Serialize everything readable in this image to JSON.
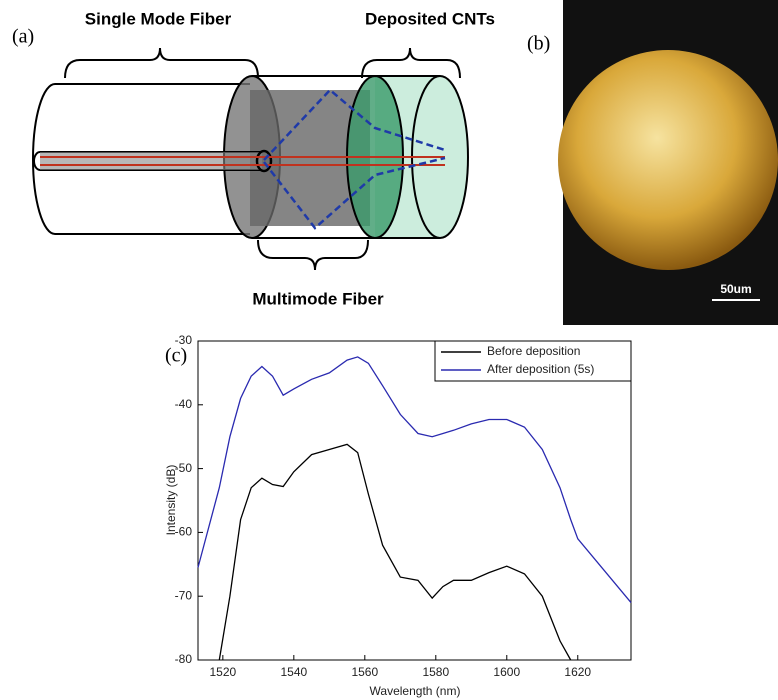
{
  "panel_labels": [
    "(a)",
    "(b)",
    "(c)"
  ],
  "diagram": {
    "labels": [
      "Single Mode Fiber",
      "Deposited CNTs",
      "Multimode Fiber"
    ]
  },
  "micrograph": {
    "scale_bar": "50um"
  },
  "chart_data": {
    "type": "line",
    "x_label": "Wavelength (nm)",
    "y_label": "Intensity (dB)",
    "x": [
      1513,
      1519,
      1522,
      1525,
      1528,
      1531,
      1534,
      1537,
      1540,
      1545,
      1550,
      1555,
      1558,
      1561,
      1565,
      1570,
      1575,
      1579,
      1582,
      1585,
      1590,
      1595,
      1600,
      1605,
      1610,
      1615,
      1618,
      1620,
      1635
    ],
    "series": [
      {
        "name": "Before deposition",
        "color": "#000000",
        "values": [
          null,
          -80,
          -70,
          -58,
          -53,
          -51.5,
          -52.5,
          -52.8,
          -50.5,
          -47.8,
          -47,
          -46.2,
          -47.5,
          -54,
          -62,
          -67,
          -67.5,
          -70.3,
          -68.5,
          -67.5,
          -67.5,
          -66.3,
          -65.3,
          -66.5,
          -70,
          -77,
          -80,
          null,
          null
        ]
      },
      {
        "name": "After deposition (5s)",
        "color": "#2a2ab0",
        "values": [
          -65.5,
          -53,
          -45,
          -39,
          -35.5,
          -34,
          -35.5,
          -38.5,
          -37.5,
          -36,
          -35,
          -33,
          -32.5,
          -33.5,
          -37,
          -41.5,
          -44.5,
          -45,
          -44.5,
          -44,
          -43,
          -42.3,
          -42.3,
          -43.5,
          -47,
          -53,
          -58,
          -61,
          -71
        ]
      }
    ],
    "xlim": [
      1513,
      1635
    ],
    "ylim": [
      -80,
      -30
    ],
    "xticks": [
      1520,
      1540,
      1560,
      1580,
      1600,
      1620
    ],
    "yticks": [
      -30,
      -40,
      -50,
      -60,
      -70,
      -80
    ],
    "legend": "upper right"
  }
}
